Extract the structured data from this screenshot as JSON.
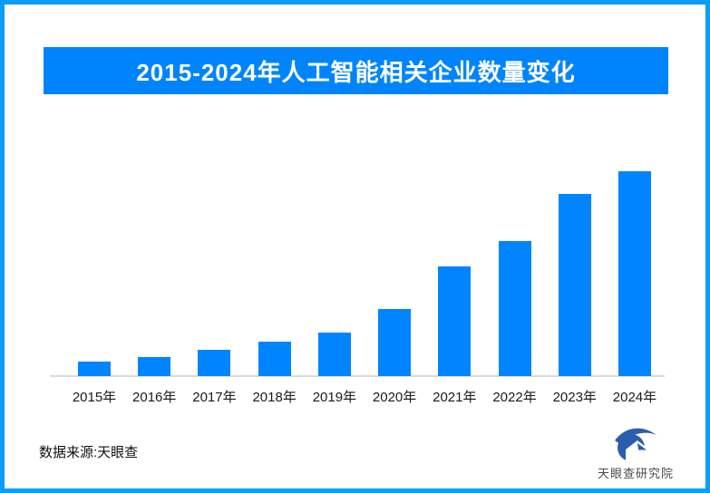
{
  "page": {
    "border_color": "#0a9ef5",
    "background_color": "#ffffff"
  },
  "header": {
    "title": "2015-2024年人工智能相关企业数量变化",
    "banner_color": "#0084fb",
    "title_color": "#ffffff"
  },
  "chart_data": {
    "type": "bar",
    "title": "2015-2024年人工智能相关企业数量变化",
    "categories": [
      "2015年",
      "2016年",
      "2017年",
      "2018年",
      "2019年",
      "2020年",
      "2021年",
      "2022年",
      "2023年",
      "2024年"
    ],
    "values": [
      16,
      21,
      29,
      38,
      48,
      74,
      121,
      149,
      201,
      226
    ],
    "values_unit": "relative bar height (no numeric y-axis or data labels shown in chart)",
    "values_pct_of_max": [
      7.1,
      9.3,
      12.8,
      16.8,
      21.2,
      32.7,
      53.5,
      65.9,
      88.9,
      100
    ],
    "xlabel": "",
    "ylabel": "",
    "ylim": [
      0,
      240
    ],
    "grid": false,
    "legend": false,
    "y_axis_visible": false,
    "bar_color": "#0084ff",
    "axis_line_color": "#dcdcdc",
    "tick_label_color": "#1a1a1a"
  },
  "footer": {
    "source_label": "数据来源:天眼查",
    "logo_text": "天眼查研究院",
    "logo_icon": "tianyancha-eye-icon",
    "logo_color": "#2a5dae"
  }
}
